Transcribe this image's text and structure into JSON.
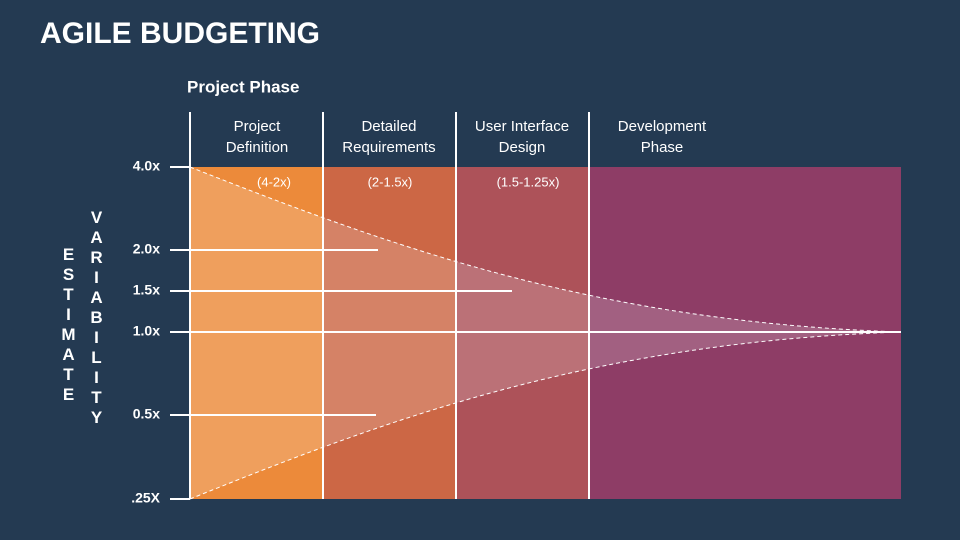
{
  "title": "AGILE BUDGETING",
  "phase_heading": "Project Phase",
  "axis_label": {
    "left": "ESTIMATE",
    "right": "VARIABILITY"
  },
  "y_labels": [
    "4.0x",
    "2.0x",
    "1.5x",
    "1.0x",
    "0.5x",
    ".25X"
  ],
  "phases": [
    {
      "label": [
        "Project",
        "Definition"
      ],
      "range": "(4-2x)"
    },
    {
      "label": [
        "Detailed",
        "Requirements"
      ],
      "range": "(2-1.5x)"
    },
    {
      "label": [
        "User Interface",
        "Design"
      ],
      "range": "(1.5-1.25x)"
    },
    {
      "label": [
        "Development",
        "Phase"
      ]
    }
  ]
}
